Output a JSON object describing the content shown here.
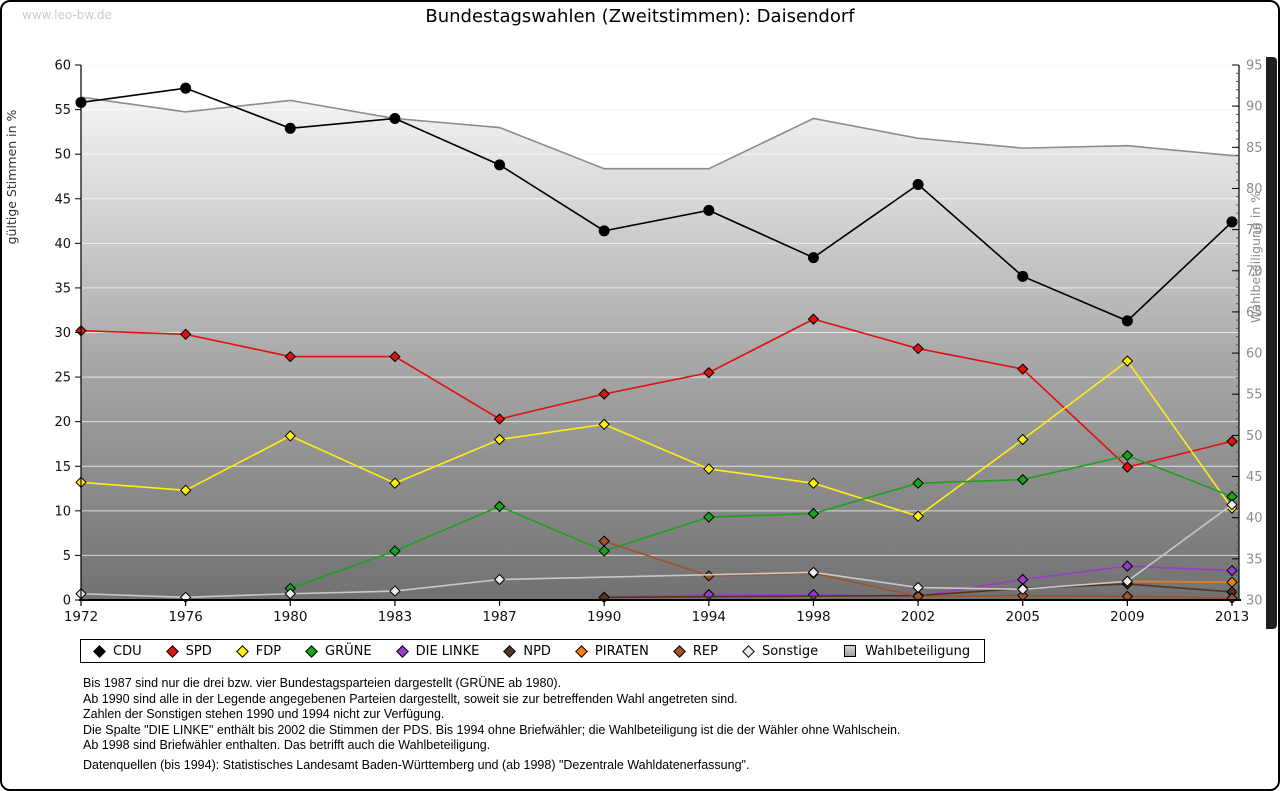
{
  "watermark": "www.leo-bw.de",
  "title": "Bundestagswahlen (Zweitstimmen): Daisendorf",
  "chart_data": {
    "type": "line",
    "x": [
      1972,
      1976,
      1980,
      1983,
      1987,
      1990,
      1994,
      1998,
      2002,
      2005,
      2009,
      2013
    ],
    "left_axis": {
      "label": "gültige Stimmen in %",
      "min": 0,
      "max": 60,
      "step": 5
    },
    "right_axis": {
      "label": "Wahlbeteiligung in %",
      "min": 30,
      "max": 95,
      "step": 5,
      "minor_step": 1
    },
    "grid": true,
    "legend_position": "bottom",
    "series": [
      {
        "name": "CDU",
        "color": "#000000",
        "marker": "circle",
        "axis": "left",
        "values": [
          55.8,
          57.4,
          52.9,
          54.0,
          48.8,
          41.4,
          43.7,
          38.4,
          46.6,
          36.3,
          31.3,
          42.4
        ]
      },
      {
        "name": "SPD",
        "color": "#e01111",
        "marker": "diamond",
        "axis": "left",
        "values": [
          30.2,
          29.8,
          27.3,
          27.3,
          20.3,
          23.1,
          25.5,
          31.5,
          28.2,
          25.9,
          14.9,
          17.8
        ]
      },
      {
        "name": "FDP",
        "color": "#ffee11",
        "marker": "diamond",
        "axis": "left",
        "values": [
          13.2,
          12.3,
          18.4,
          13.1,
          18.0,
          19.7,
          14.7,
          13.1,
          9.4,
          18.0,
          26.8,
          10.3
        ]
      },
      {
        "name": "GRÜNE",
        "color": "#1ca11c",
        "marker": "diamond",
        "axis": "left",
        "values": [
          null,
          null,
          1.3,
          5.5,
          10.5,
          5.5,
          9.3,
          9.7,
          13.1,
          13.5,
          16.2,
          11.6
        ]
      },
      {
        "name": "DIE LINKE",
        "color": "#9b3bc9",
        "marker": "diamond",
        "axis": "left",
        "values": [
          null,
          null,
          null,
          null,
          null,
          0.3,
          0.6,
          0.6,
          0.4,
          2.3,
          3.8,
          3.3
        ]
      },
      {
        "name": "NPD",
        "color": "#53361f",
        "marker": "diamond",
        "axis": "left",
        "values": [
          null,
          null,
          null,
          null,
          null,
          0.3,
          null,
          null,
          0.5,
          1.3,
          1.8,
          0.9
        ]
      },
      {
        "name": "PIRATEN",
        "color": "#ef7f1a",
        "marker": "diamond",
        "axis": "left",
        "values": [
          null,
          null,
          null,
          null,
          null,
          null,
          null,
          null,
          null,
          null,
          2.1,
          2.0
        ]
      },
      {
        "name": "REP",
        "color": "#a0522d",
        "marker": "diamond",
        "axis": "left",
        "values": [
          null,
          null,
          null,
          null,
          null,
          6.6,
          2.7,
          3.0,
          0.4,
          0.5,
          0.4,
          0.2
        ]
      },
      {
        "name": "Sonstige",
        "color": "#c9c9c9",
        "marker": "diamond",
        "marker_fill": "#ececec",
        "axis": "left",
        "values": [
          0.7,
          0.3,
          0.7,
          1.0,
          2.3,
          null,
          null,
          3.1,
          1.4,
          1.2,
          2.1,
          10.7
        ]
      },
      {
        "name": "Wahlbeteiligung",
        "color": "#8c8c8c",
        "marker": "none",
        "axis": "right",
        "style": "area",
        "values": [
          91.1,
          89.3,
          90.7,
          88.5,
          87.4,
          82.4,
          82.4,
          88.5,
          86.1,
          84.9,
          85.2,
          84.0
        ]
      }
    ]
  },
  "footnotes": [
    "Bis 1987 sind nur die drei bzw. vier Bundestagsparteien dargestellt (GRÜNE ab 1980).",
    "Ab 1990 sind alle in der Legende angegebenen Parteien dargestellt, soweit sie zur betreffenden Wahl angetreten sind.",
    "Zahlen der Sonstigen stehen 1990 und 1994 nicht zur Verfügung.",
    "Die Spalte \"DIE LINKE\" enthält bis 2002 die Stimmen der PDS. Bis 1994 ohne Briefwähler; die Wahlbeteiligung ist die der Wähler ohne Wahlschein.",
    "Ab 1998 sind Briefwähler enthalten. Das betrifft auch die Wahlbeteiligung."
  ],
  "datasource": "Datenquellen (bis 1994): Statistisches Landesamt Baden-Württemberg und (ab 1998) \"Dezentrale Wahldatenerfassung\"."
}
